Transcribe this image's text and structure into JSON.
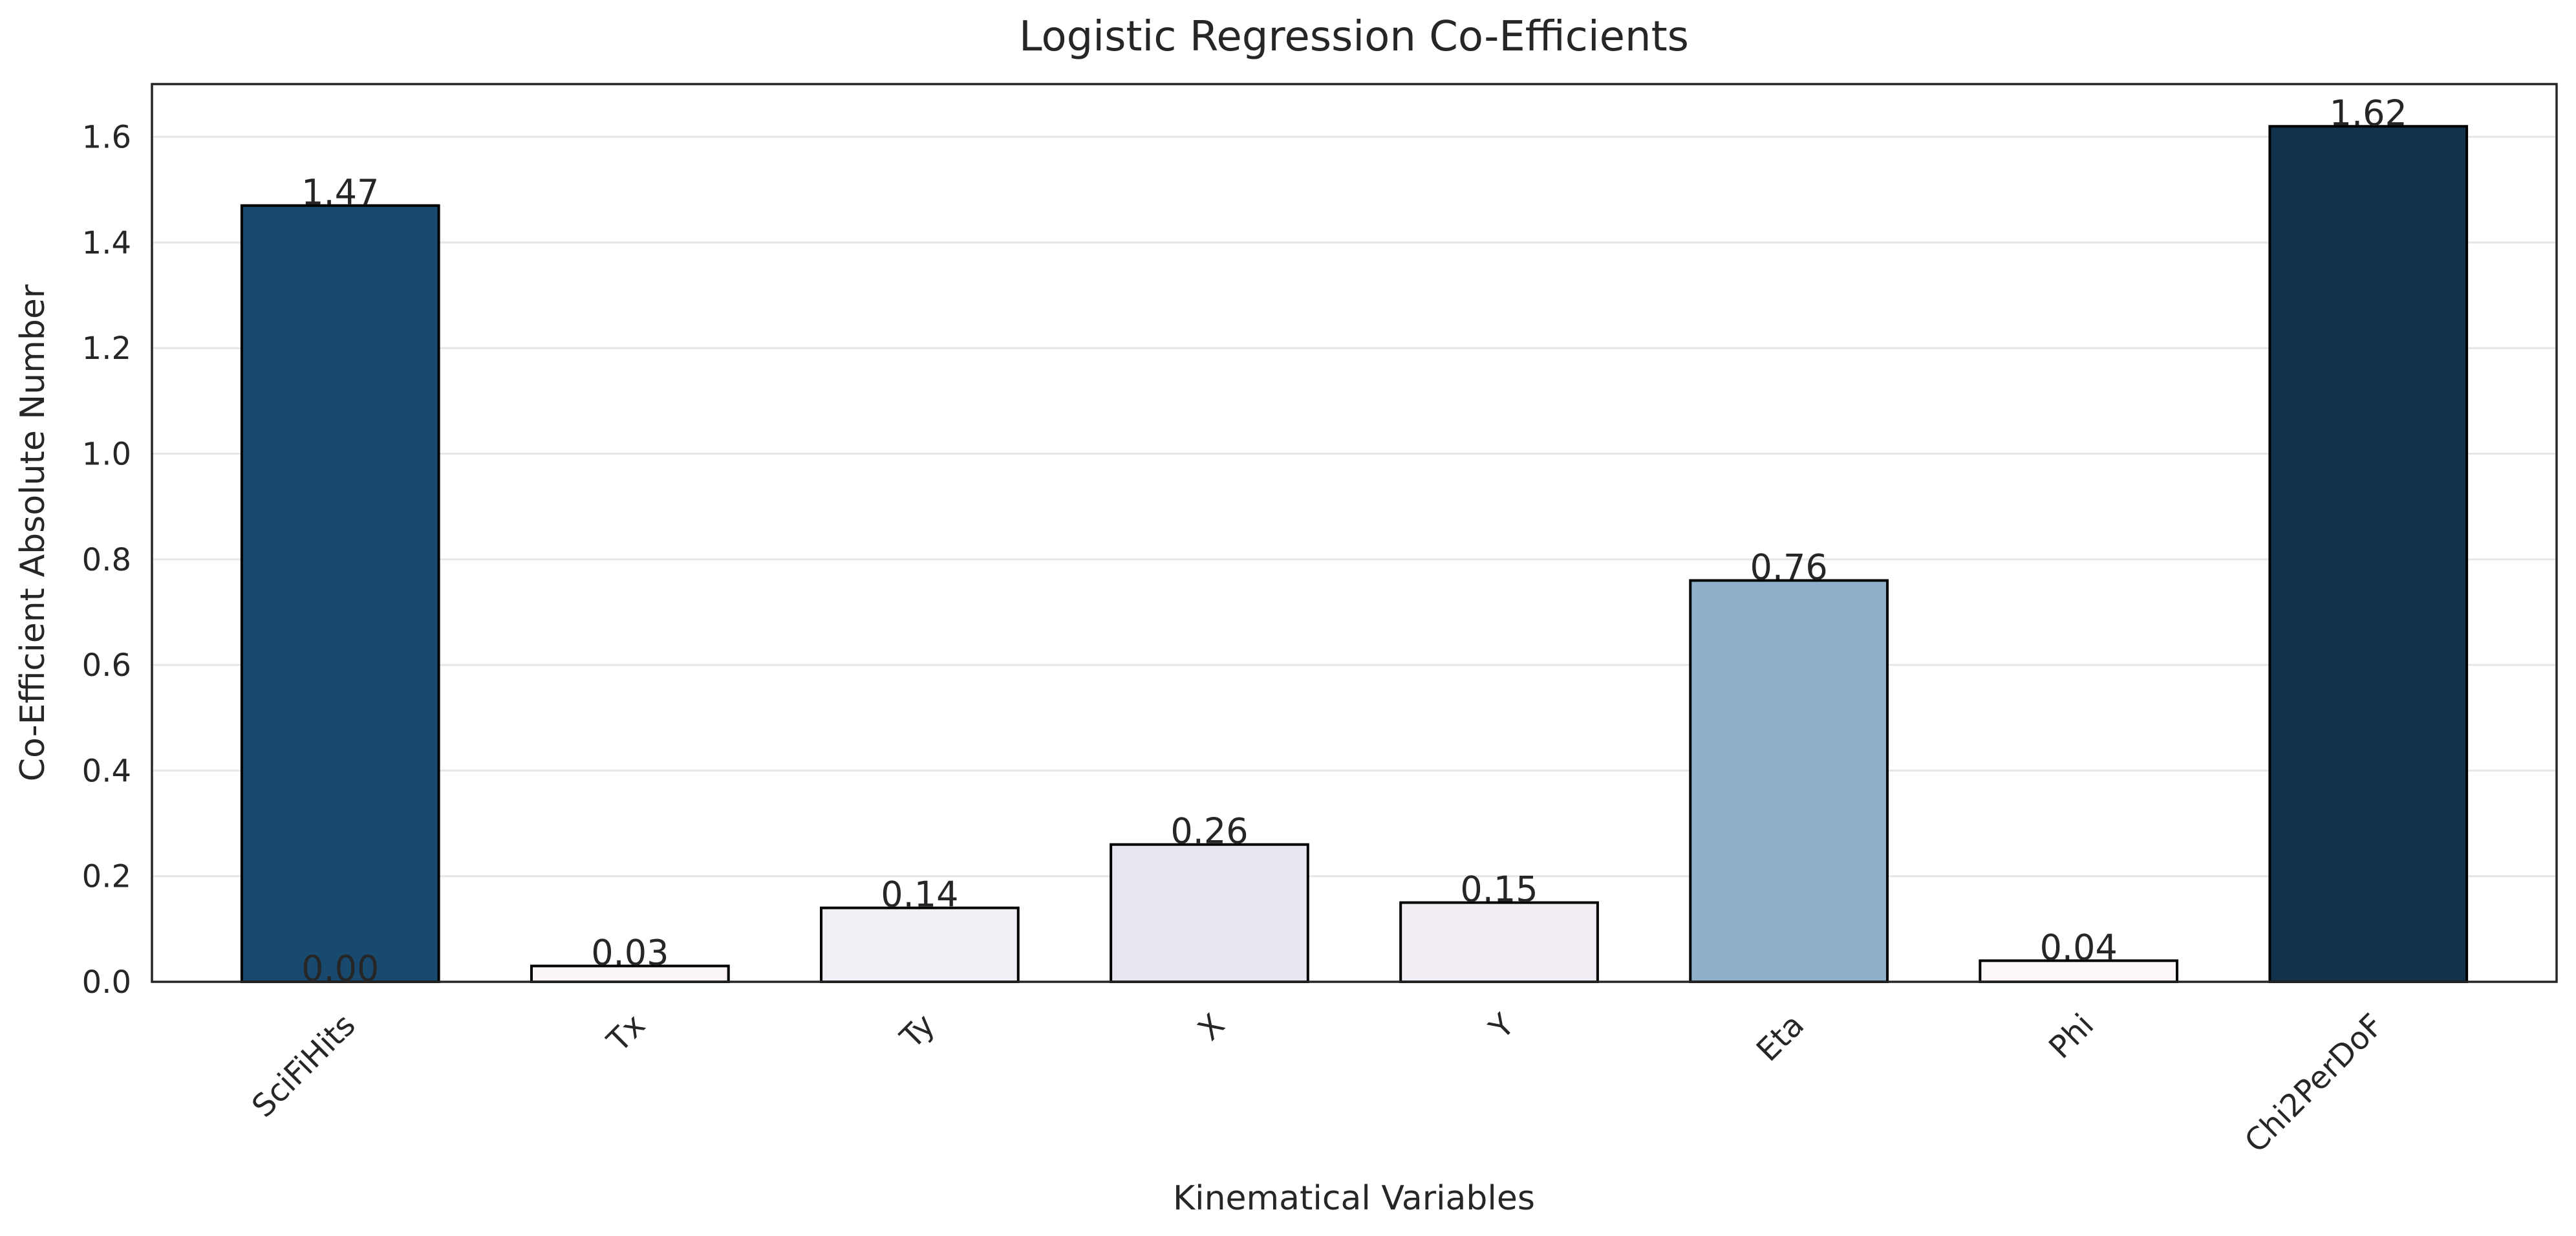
{
  "chart_data": {
    "type": "bar",
    "title": "Logistic Regression Co-Efficients",
    "xlabel": "Kinematical Variables",
    "ylabel": "Co-Efficient Absolute Number",
    "categories": [
      "SciFiHits",
      "Tx",
      "Ty",
      "X",
      "Y",
      "Eta",
      "Phi",
      "Chi2PerDoF"
    ],
    "values": [
      1.47,
      0.03,
      0.14,
      0.26,
      0.15,
      0.76,
      0.04,
      1.62
    ],
    "data_labels": [
      "1.47",
      "0.03",
      "0.14",
      "0.26",
      "0.15",
      "0.76",
      "0.04",
      "1.62"
    ],
    "extra_annotation": {
      "text": "0.00",
      "value": 0.0,
      "category": "SciFiHits"
    },
    "bar_colors": [
      "#174a6e",
      "#fbf4f8",
      "#f2eef5",
      "#e8e6f0",
      "#f2edf5",
      "#8fb0ca",
      "#fdf7fa",
      "#11324a"
    ],
    "ylim": [
      0,
      1.7
    ],
    "yticks": [
      0.0,
      0.2,
      0.4,
      0.6,
      0.8,
      1.0,
      1.2,
      1.4,
      1.6
    ],
    "ytick_labels": [
      "0.0",
      "0.2",
      "0.4",
      "0.6",
      "0.8",
      "1.0",
      "1.2",
      "1.4",
      "1.6"
    ],
    "grid": true,
    "legend": "none"
  }
}
